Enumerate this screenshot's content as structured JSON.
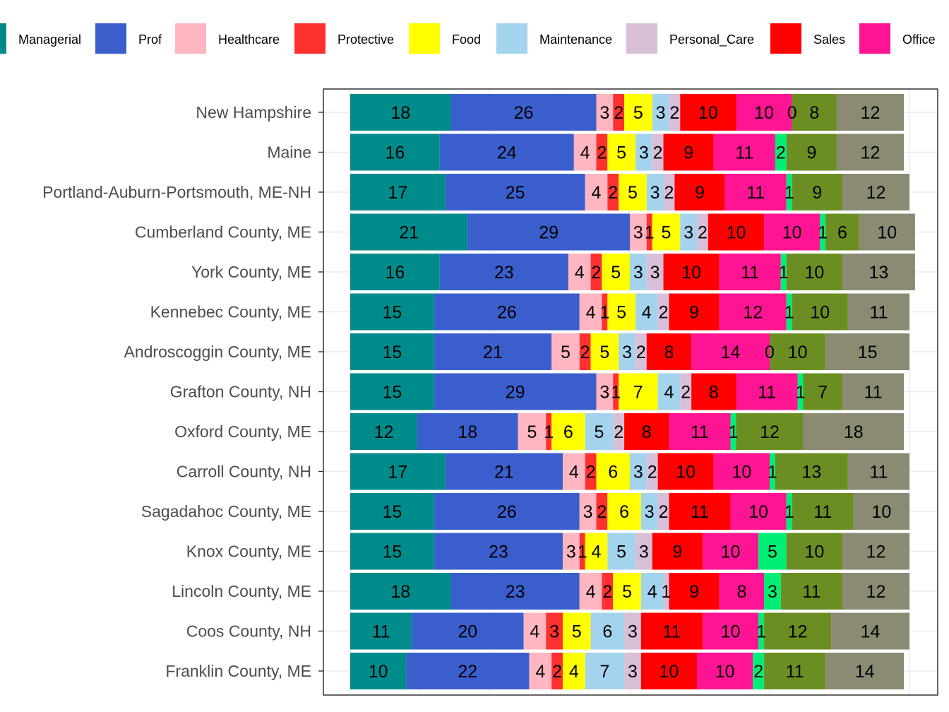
{
  "chart_data": {
    "type": "bar",
    "orientation": "horizontal",
    "stacked": true,
    "legend_position": "top",
    "grid": true,
    "xlim": [
      0,
      100
    ],
    "categories": [
      "New Hampshire",
      "Maine",
      "Portland-Auburn-Portsmouth, ME-NH",
      "Cumberland County, ME",
      "York County, ME",
      "Kennebec County, ME",
      "Androscoggin County, ME",
      "Grafton County, NH",
      "Oxford County, ME",
      "Carroll County, NH",
      "Sagadahoc County, ME",
      "Knox County, ME",
      "Lincoln County, ME",
      "Coos County, NH",
      "Franklin County, ME"
    ],
    "legend": [
      {
        "name": "Managerial",
        "color": "#008b8b"
      },
      {
        "name": "Prof",
        "color": "#3a5fcd"
      },
      {
        "name": "Healthcare",
        "color": "#ffb6c1"
      },
      {
        "name": "Protective",
        "color": "#ff3030"
      },
      {
        "name": "Food",
        "color": "#ffff00"
      },
      {
        "name": "Maintenance",
        "color": "#a4d3ee"
      },
      {
        "name": "Personal_Care",
        "color": "#d8bfd8"
      },
      {
        "name": "Sales",
        "color": "#ff0000"
      },
      {
        "name": "Office",
        "color": "#ff1493"
      }
    ],
    "series": [
      {
        "name": "Managerial",
        "color": "#008b8b",
        "values": [
          18,
          16,
          17,
          21,
          16,
          15,
          15,
          15,
          12,
          17,
          15,
          15,
          18,
          11,
          10
        ]
      },
      {
        "name": "Prof",
        "color": "#3a5fcd",
        "values": [
          26,
          24,
          25,
          29,
          23,
          26,
          21,
          29,
          18,
          21,
          26,
          23,
          23,
          20,
          22
        ]
      },
      {
        "name": "Healthcare",
        "color": "#ffb6c1",
        "values": [
          3,
          4,
          4,
          3,
          4,
          4,
          5,
          3,
          5,
          4,
          3,
          3,
          4,
          4,
          4
        ]
      },
      {
        "name": "Protective",
        "color": "#ff3030",
        "values": [
          2,
          2,
          2,
          1,
          2,
          1,
          2,
          1,
          1,
          2,
          2,
          1,
          2,
          3,
          2
        ]
      },
      {
        "name": "Food",
        "color": "#ffff00",
        "values": [
          5,
          5,
          5,
          5,
          5,
          5,
          5,
          7,
          6,
          6,
          6,
          4,
          5,
          5,
          4
        ]
      },
      {
        "name": "Maintenance",
        "color": "#a4d3ee",
        "values": [
          3,
          3,
          3,
          3,
          3,
          4,
          3,
          4,
          5,
          3,
          3,
          5,
          4,
          6,
          7
        ]
      },
      {
        "name": "Personal_Care",
        "color": "#d8bfd8",
        "values": [
          2,
          2,
          2,
          2,
          3,
          2,
          2,
          2,
          2,
          2,
          2,
          3,
          1,
          3,
          3
        ]
      },
      {
        "name": "Sales",
        "color": "#ff0000",
        "values": [
          10,
          9,
          9,
          10,
          10,
          9,
          8,
          8,
          8,
          10,
          11,
          9,
          9,
          11,
          10
        ]
      },
      {
        "name": "Office",
        "color": "#ff1493",
        "values": [
          10,
          11,
          11,
          10,
          11,
          12,
          14,
          11,
          11,
          10,
          10,
          10,
          8,
          10,
          10
        ]
      },
      {
        "color": "#00ee76",
        "values": [
          0,
          2,
          1,
          1,
          1,
          1,
          0,
          1,
          1,
          1,
          1,
          5,
          3,
          1,
          2
        ]
      },
      {
        "color": "#6b8e23",
        "values": [
          8,
          9,
          9,
          6,
          10,
          10,
          10,
          7,
          12,
          13,
          11,
          10,
          11,
          12,
          11
        ]
      },
      {
        "color": "#8b8b73",
        "values": [
          12,
          12,
          12,
          10,
          13,
          11,
          15,
          11,
          18,
          11,
          10,
          12,
          12,
          14,
          14
        ]
      }
    ]
  }
}
